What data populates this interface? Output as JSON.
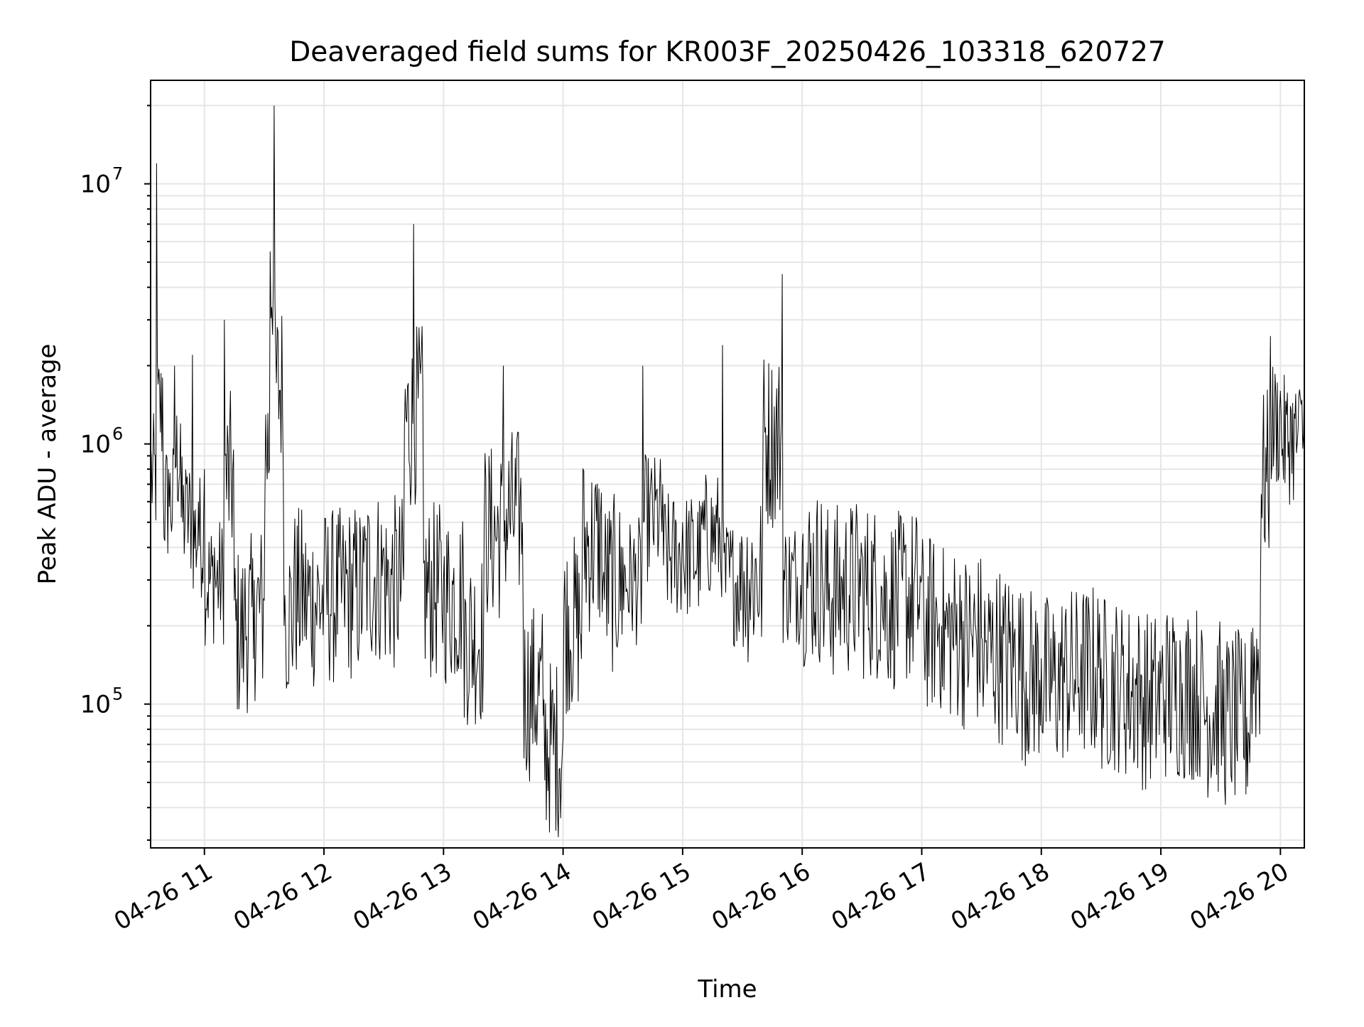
{
  "chart_data": {
    "type": "line",
    "title": "Deaveraged field sums for KR003F_20250426_103318_620727",
    "xlabel": "Time",
    "ylabel": "Peak ADU - average",
    "x_scale": "time",
    "y_scale": "log",
    "xlim": [
      "2025-04-26 10:33",
      "2025-04-26 20:12"
    ],
    "ylim": [
      28000,
      25000000
    ],
    "x_ticks": [
      "04-26 11",
      "04-26 12",
      "04-26 13",
      "04-26 14",
      "04-26 15",
      "04-26 16",
      "04-26 17",
      "04-26 18",
      "04-26 19",
      "04-26 20"
    ],
    "y_ticks": [
      {
        "value": 100000,
        "base": "10",
        "exp": "5"
      },
      {
        "value": 1000000,
        "base": "10",
        "exp": "6"
      },
      {
        "value": 10000000,
        "base": "10",
        "exp": "7"
      }
    ],
    "grid": true,
    "line_color": "#000000",
    "grid_color": "#e6e6e6",
    "series": [
      {
        "x": [
          "2025-04-26 10:33",
          "2025-04-26 10:36",
          "2025-04-26 10:39",
          "2025-04-26 10:42",
          "2025-04-26 10:45",
          "2025-04-26 10:48",
          "2025-04-26 10:51",
          "2025-04-26 10:54",
          "2025-04-26 10:57",
          "2025-04-26 11:00",
          "2025-04-26 11:05",
          "2025-04-26 11:10",
          "2025-04-26 11:15",
          "2025-04-26 11:20",
          "2025-04-26 11:25",
          "2025-04-26 11:30",
          "2025-04-26 11:33",
          "2025-04-26 11:35",
          "2025-04-26 11:40",
          "2025-04-26 11:45",
          "2025-04-26 11:50",
          "2025-04-26 12:00",
          "2025-04-26 12:10",
          "2025-04-26 12:20",
          "2025-04-26 12:30",
          "2025-04-26 12:40",
          "2025-04-26 12:45",
          "2025-04-26 12:50",
          "2025-04-26 13:00",
          "2025-04-26 13:10",
          "2025-04-26 13:20",
          "2025-04-26 13:30",
          "2025-04-26 13:40",
          "2025-04-26 13:50",
          "2025-04-26 14:00",
          "2025-04-26 14:10",
          "2025-04-26 14:20",
          "2025-04-26 14:30",
          "2025-04-26 14:40",
          "2025-04-26 14:50",
          "2025-04-26 15:00",
          "2025-04-26 15:10",
          "2025-04-26 15:20",
          "2025-04-26 15:30",
          "2025-04-26 15:40",
          "2025-04-26 15:50",
          "2025-04-26 16:00",
          "2025-04-26 16:10",
          "2025-04-26 16:20",
          "2025-04-26 16:30",
          "2025-04-26 16:40",
          "2025-04-26 16:50",
          "2025-04-26 17:00",
          "2025-04-26 17:10",
          "2025-04-26 17:20",
          "2025-04-26 17:30",
          "2025-04-26 17:40",
          "2025-04-26 17:50",
          "2025-04-26 18:00",
          "2025-04-26 18:10",
          "2025-04-26 18:20",
          "2025-04-26 18:30",
          "2025-04-26 18:40",
          "2025-04-26 18:50",
          "2025-04-26 19:00",
          "2025-04-26 19:10",
          "2025-04-26 19:20",
          "2025-04-26 19:30",
          "2025-04-26 19:40",
          "2025-04-26 19:45",
          "2025-04-26 19:50",
          "2025-04-26 19:55",
          "2025-04-26 20:00",
          "2025-04-26 20:05",
          "2025-04-26 20:10",
          "2025-04-26 20:12"
        ],
        "y": [
          1000000,
          12000000,
          1800000,
          800000,
          2000000,
          1200000,
          700000,
          2200000,
          600000,
          800000,
          400000,
          3000000,
          250000,
          200000,
          300000,
          250000,
          5500000,
          20000000,
          200000,
          350000,
          280000,
          320000,
          300000,
          350000,
          400000,
          300000,
          7000000,
          350000,
          300000,
          320000,
          150000,
          2000000,
          200000,
          90000,
          75000,
          800000,
          300000,
          400000,
          2000000,
          700000,
          500000,
          600000,
          2400000,
          400000,
          350000,
          4500000,
          400000,
          350000,
          300000,
          380000,
          280000,
          320000,
          300000,
          200000,
          250000,
          180000,
          200000,
          160000,
          150000,
          140000,
          170000,
          150000,
          140000,
          130000,
          120000,
          150000,
          120000,
          110000,
          100000,
          100000,
          300000,
          2600000,
          1600000,
          1400000,
          1500000,
          1800000
        ]
      }
    ]
  }
}
